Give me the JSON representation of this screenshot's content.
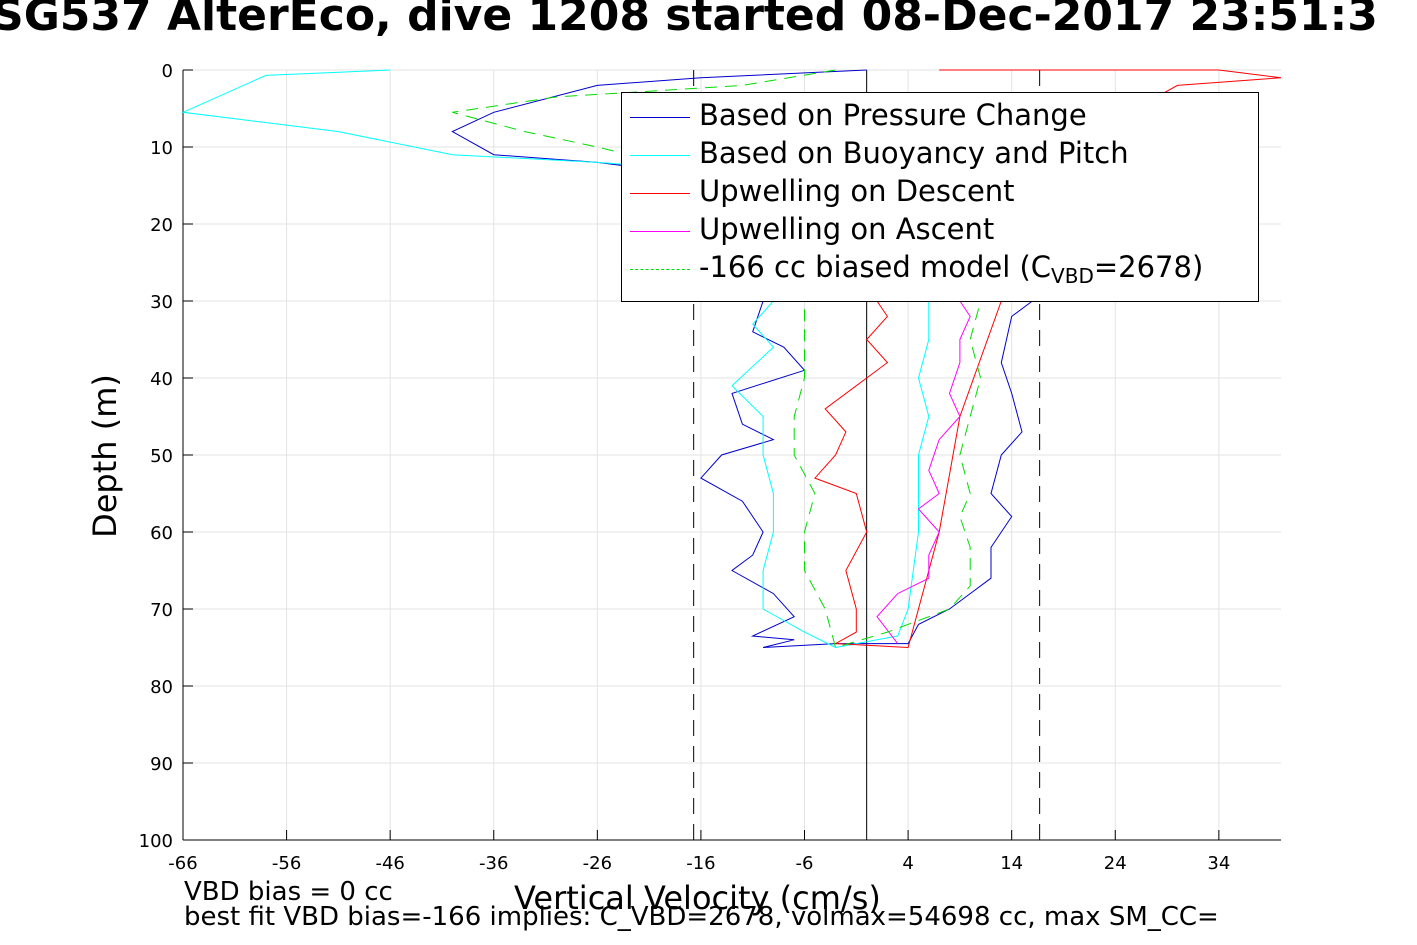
{
  "title": "SG537 AlterEco, dive 1208 started 08-Dec-2017 23:51:3",
  "notes": {
    "vbd_bias": "VBD bias = 0 cc",
    "best_fit": "best fit VBD bias=-166 implies: C_VBD=2678, volmax=54698 cc, max SM_CC="
  },
  "legend": {
    "items": [
      {
        "label": "Based on Pressure Change",
        "color": "#0000cc",
        "dash": "solid"
      },
      {
        "label": "Based on Buoyancy and Pitch",
        "color": "#00ffff",
        "dash": "solid"
      },
      {
        "label": "Upwelling on Descent",
        "color": "#ff0000",
        "dash": "solid"
      },
      {
        "label": "Upwelling on Ascent",
        "color": "#ff00ff",
        "dash": "solid"
      },
      {
        "label_prefix": "-166 cc biased model (C",
        "label_sub": "VBD",
        "label_suffix": "=2678)",
        "color": "#00dd00",
        "dash": "dashed"
      }
    ]
  },
  "chart_data": {
    "type": "line",
    "title": "SG537 AlterEco, dive 1208 started 08-Dec-2017 23:51:3",
    "xlabel": "Vertical Velocity (cm/s)",
    "ylabel": "Depth (m)",
    "xlim": [
      -66,
      40
    ],
    "ylim": [
      0,
      100
    ],
    "y_reversed": true,
    "grid": true,
    "legend_position": "top-right",
    "xticks": [
      -66,
      -56,
      -46,
      -36,
      -26,
      -16,
      -6,
      4,
      14,
      24,
      34
    ],
    "yticks": [
      0,
      10,
      20,
      30,
      40,
      50,
      60,
      70,
      80,
      90,
      100
    ],
    "reference_lines": [
      {
        "x": 0,
        "style": "solid",
        "color": "#000000"
      },
      {
        "x": -16.7,
        "style": "dashed",
        "color": "#000000"
      },
      {
        "x": 16.7,
        "style": "dashed",
        "color": "#000000"
      }
    ],
    "series": [
      {
        "name": "Based on Pressure Change",
        "color": "#0000cc",
        "points": [
          [
            0,
            0
          ],
          [
            -16,
            1
          ],
          [
            -26,
            2
          ],
          [
            -36,
            5.5
          ],
          [
            -40,
            8
          ],
          [
            -36,
            11
          ],
          [
            -26,
            12
          ],
          [
            -20,
            13
          ],
          [
            -14,
            14
          ],
          [
            -10,
            15
          ],
          [
            -10,
            30
          ],
          [
            -11,
            34
          ],
          [
            -8,
            36
          ],
          [
            -6,
            39
          ],
          [
            -13,
            42
          ],
          [
            -12,
            46
          ],
          [
            -9,
            48
          ],
          [
            -14,
            50
          ],
          [
            -16,
            53
          ],
          [
            -12,
            56
          ],
          [
            -10,
            60
          ],
          [
            -11,
            63
          ],
          [
            -13,
            65
          ],
          [
            -9,
            68
          ],
          [
            -7,
            71
          ],
          [
            -11,
            73.5
          ],
          [
            -7,
            74
          ],
          [
            -10,
            75
          ],
          [
            -3,
            74.5
          ],
          [
            4,
            74.5
          ],
          [
            5,
            72
          ],
          [
            8,
            70
          ],
          [
            10,
            68
          ],
          [
            12,
            66
          ],
          [
            12,
            62
          ],
          [
            14,
            58
          ],
          [
            12,
            55
          ],
          [
            13,
            50
          ],
          [
            15,
            47
          ],
          [
            14,
            42
          ],
          [
            13,
            38
          ],
          [
            14,
            32
          ],
          [
            16,
            30
          ]
        ]
      },
      {
        "name": "Based on Buoyancy and Pitch",
        "color": "#00ffff",
        "points": [
          [
            -46,
            0
          ],
          [
            -58,
            0.7
          ],
          [
            -66,
            5.5
          ],
          [
            -51,
            8
          ],
          [
            -40,
            11
          ],
          [
            -26,
            12
          ],
          [
            -16,
            13
          ],
          [
            -10,
            15
          ],
          [
            -9,
            30
          ],
          [
            -11,
            33
          ],
          [
            -9,
            36
          ],
          [
            -13,
            41
          ],
          [
            -10,
            45
          ],
          [
            -10,
            50
          ],
          [
            -9,
            55
          ],
          [
            -9,
            60
          ],
          [
            -10,
            65
          ],
          [
            -10,
            70
          ],
          [
            -6,
            73
          ],
          [
            -3,
            75
          ],
          [
            3,
            73.5
          ],
          [
            4,
            70
          ],
          [
            5,
            60
          ],
          [
            5,
            50
          ],
          [
            6,
            45
          ],
          [
            5,
            40
          ],
          [
            6,
            35
          ],
          [
            6,
            30
          ]
        ]
      },
      {
        "name": "Upwelling on Descent",
        "color": "#ff0000",
        "points": [
          [
            7,
            0
          ],
          [
            34,
            0
          ],
          [
            40,
            1
          ],
          [
            30,
            2
          ],
          [
            26,
            5
          ],
          [
            18,
            10
          ],
          [
            14,
            20
          ],
          [
            13,
            30
          ],
          [
            9,
            45
          ],
          [
            7,
            60
          ],
          [
            4,
            75
          ],
          [
            -3,
            74.5
          ],
          [
            -1,
            73
          ],
          [
            -1,
            70
          ],
          [
            -2,
            65
          ],
          [
            0,
            60
          ],
          [
            -1,
            55
          ],
          [
            -5,
            53
          ],
          [
            -3,
            50
          ],
          [
            -2,
            47
          ],
          [
            -4,
            44
          ],
          [
            0,
            40
          ],
          [
            2,
            38
          ],
          [
            0,
            35
          ],
          [
            2,
            32
          ],
          [
            1,
            30
          ]
        ]
      },
      {
        "name": "Upwelling on Ascent",
        "color": "#ff00ff",
        "points": [
          [
            3,
            74.5
          ],
          [
            1,
            71
          ],
          [
            3,
            68
          ],
          [
            6,
            66
          ],
          [
            6,
            63
          ],
          [
            7,
            60
          ],
          [
            5,
            57
          ],
          [
            7,
            55
          ],
          [
            6,
            52
          ],
          [
            7,
            48
          ],
          [
            9,
            45
          ],
          [
            8,
            42
          ],
          [
            9,
            38
          ],
          [
            9,
            35
          ],
          [
            10,
            32
          ],
          [
            9,
            30
          ]
        ]
      },
      {
        "name": "-166 cc biased model (CVBD=2678)",
        "color": "#00dd00",
        "dashed": true,
        "points": [
          [
            -3,
            0
          ],
          [
            -12,
            2
          ],
          [
            -30,
            3.5
          ],
          [
            -40,
            5.5
          ],
          [
            -33,
            8
          ],
          [
            -26,
            10
          ],
          [
            -20,
            12
          ],
          [
            -14,
            14
          ],
          [
            -6,
            30
          ],
          [
            -6,
            40
          ],
          [
            -7,
            45
          ],
          [
            -7,
            50
          ],
          [
            -5,
            55
          ],
          [
            -6,
            60
          ],
          [
            -6,
            65
          ],
          [
            -4,
            70
          ],
          [
            -3,
            75
          ],
          [
            2,
            73
          ],
          [
            8,
            70
          ],
          [
            10,
            67
          ],
          [
            10,
            62
          ],
          [
            9,
            58
          ],
          [
            10,
            55
          ],
          [
            9,
            50
          ],
          [
            10,
            45
          ],
          [
            11,
            40
          ],
          [
            10,
            35
          ],
          [
            11,
            30
          ]
        ]
      }
    ]
  }
}
